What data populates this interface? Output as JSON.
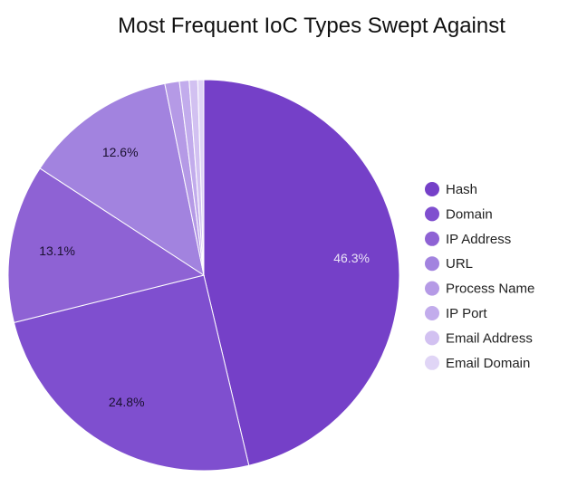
{
  "chart_data": {
    "type": "pie",
    "title": "Most Frequent IoC Types Swept Against",
    "legend_position": "right",
    "slices": [
      {
        "name": "Hash",
        "value": 46.3,
        "label": "46.3%",
        "color": "#7540c8",
        "label_color": "#e9e2f6"
      },
      {
        "name": "Domain",
        "value": 24.8,
        "label": "24.8%",
        "color": "#7f4fcf",
        "label_color": "#1a1030"
      },
      {
        "name": "IP Address",
        "value": 13.1,
        "label": "13.1%",
        "color": "#8e62d4",
        "label_color": "#1a1030"
      },
      {
        "name": "URL",
        "value": 12.6,
        "label": "12.6%",
        "color": "#a283df",
        "label_color": "#1a1030"
      },
      {
        "name": "Process Name",
        "value": 1.2,
        "label": "",
        "color": "#b59ae6",
        "label_color": "#1a1030"
      },
      {
        "name": "IP Port",
        "value": 0.8,
        "label": "",
        "color": "#c2acec",
        "label_color": "#1a1030"
      },
      {
        "name": "Email Address",
        "value": 0.7,
        "label": "",
        "color": "#d2c1f1",
        "label_color": "#1a1030"
      },
      {
        "name": "Email Domain",
        "value": 0.5,
        "label": "",
        "color": "#e0d5f6",
        "label_color": "#1a1030"
      }
    ]
  }
}
